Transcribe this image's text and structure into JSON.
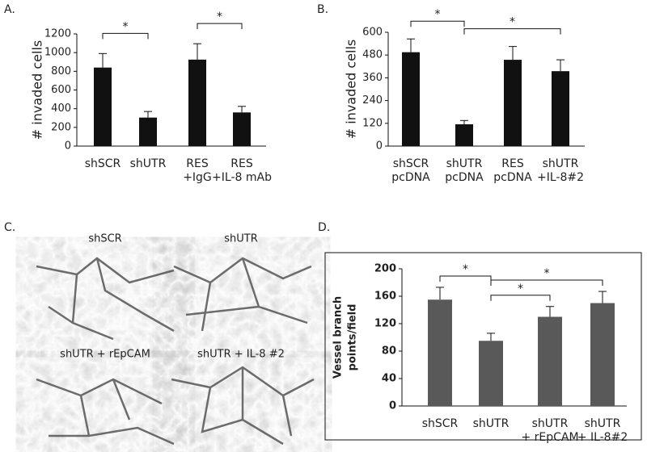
{
  "chart_data": [
    {
      "type": "bar",
      "panel_label": "A.",
      "y_label": [
        "# invaded cells"
      ],
      "categories": [
        [
          "shSCR"
        ],
        [
          "shUTR"
        ],
        [
          "RES",
          "+IgG"
        ],
        [
          "RES",
          "+IL-8 mAb"
        ]
      ],
      "values": [
        840,
        305,
        925,
        360
      ],
      "errors": [
        150,
        65,
        170,
        65
      ],
      "color": "#111111",
      "ylim": [
        0,
        1200
      ],
      "yticks": [
        0,
        200,
        400,
        600,
        800,
        1000,
        1200
      ],
      "annotations": [
        {
          "text": "*",
          "between": [
            0,
            1
          ]
        },
        {
          "text": "*",
          "between": [
            2,
            3
          ]
        }
      ]
    },
    {
      "type": "bar",
      "panel_label": "B.",
      "y_label": [
        "# invaded cells"
      ],
      "categories": [
        [
          "shSCR",
          "pcDNA"
        ],
        [
          "shUTR",
          "pcDNA"
        ],
        [
          "RES",
          "pcDNA"
        ],
        [
          "shUTR",
          "+IL-8#2"
        ]
      ],
      "values": [
        495,
        115,
        455,
        395
      ],
      "errors": [
        70,
        20,
        70,
        60
      ],
      "color": "#111111",
      "ylim": [
        0,
        600
      ],
      "yticks": [
        0,
        120,
        240,
        360,
        480,
        600
      ],
      "annotations": [
        {
          "text": "*",
          "between": [
            0,
            1
          ]
        },
        {
          "text": "*",
          "between": [
            1,
            3
          ]
        }
      ]
    },
    {
      "type": "bar",
      "panel_label": "D.",
      "y_label": [
        "Vessel branch",
        "points/field"
      ],
      "categories": [
        [
          "shSCR"
        ],
        [
          "shUTR"
        ],
        [
          "shUTR",
          "+ rEpCAM"
        ],
        [
          "shUTR",
          "+ IL-8#2"
        ]
      ],
      "values": [
        155,
        95,
        130,
        150
      ],
      "errors": [
        18,
        11,
        15,
        17
      ],
      "color": "#595959",
      "ylim": [
        0,
        200
      ],
      "yticks": [
        0,
        40,
        80,
        120,
        160,
        200
      ],
      "annotations": [
        {
          "text": "*",
          "between": [
            0,
            1
          ]
        },
        {
          "text": "*",
          "between": [
            1,
            3
          ]
        },
        {
          "text": "*",
          "between": [
            1,
            2
          ]
        }
      ]
    }
  ],
  "panel_c": {
    "panel_label": "C.",
    "images": [
      "shSCR",
      "shUTR",
      "shUTR + rEpCAM",
      "shUTR + IL-8 #2"
    ]
  }
}
